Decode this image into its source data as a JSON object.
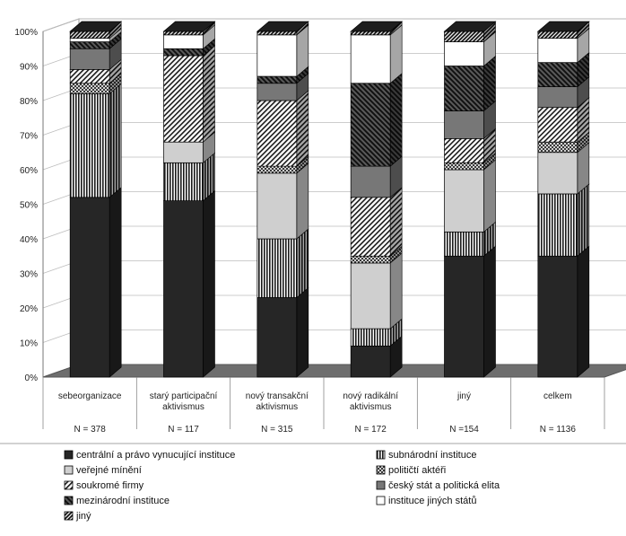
{
  "chart_data": {
    "type": "bar",
    "stacked": true,
    "percent": true,
    "three_d": true,
    "ylim": [
      0,
      100
    ],
    "y_ticks": [
      "0%",
      "10%",
      "20%",
      "30%",
      "40%",
      "50%",
      "60%",
      "70%",
      "80%",
      "90%",
      "100%"
    ],
    "categories": [
      {
        "label": [
          "sebeorganizace"
        ],
        "n": "N = 378"
      },
      {
        "label": [
          "starý participační",
          "aktivismus"
        ],
        "n": "N = 117"
      },
      {
        "label": [
          "nový transakční",
          "aktivismus"
        ],
        "n": "N = 315"
      },
      {
        "label": [
          "nový radikální",
          "aktivismus"
        ],
        "n": "N = 172"
      },
      {
        "label": [
          "jiný"
        ],
        "n": "N =154"
      },
      {
        "label": [
          "celkem"
        ],
        "n": "N = 1136"
      }
    ],
    "series": [
      {
        "name": "centrální a právo vynucující instituce",
        "pattern": "solid-dark",
        "values": [
          52,
          51,
          23,
          9,
          35,
          35
        ]
      },
      {
        "name": "subnárodní instituce",
        "pattern": "vertical-stripes",
        "values": [
          30,
          11,
          17,
          5,
          7,
          18
        ]
      },
      {
        "name": "veřejné mínění",
        "pattern": "solid-light",
        "values": [
          0,
          6,
          19,
          19,
          18,
          12
        ]
      },
      {
        "name": "političtí aktéři",
        "pattern": "crosshatch",
        "values": [
          3,
          0,
          2,
          2,
          2,
          3
        ]
      },
      {
        "name": "soukromé firmy",
        "pattern": "diagonal-right",
        "values": [
          4,
          25,
          19,
          17,
          7,
          10
        ]
      },
      {
        "name": "český stát a politická elita",
        "pattern": "solid-mid",
        "values": [
          6,
          0,
          5,
          9,
          8,
          6
        ]
      },
      {
        "name": "mezinárodní instituce",
        "pattern": "diagonal-left",
        "values": [
          2,
          2,
          2,
          24,
          13,
          7
        ]
      },
      {
        "name": "instituce jiných států",
        "pattern": "white",
        "values": [
          1,
          4,
          12,
          14,
          7,
          7
        ]
      },
      {
        "name": "jiný",
        "pattern": "diagonal-right-dense",
        "values": [
          2,
          1,
          1,
          1,
          3,
          2
        ]
      }
    ],
    "legend": {
      "placement": "bottom",
      "columns": 2
    }
  }
}
